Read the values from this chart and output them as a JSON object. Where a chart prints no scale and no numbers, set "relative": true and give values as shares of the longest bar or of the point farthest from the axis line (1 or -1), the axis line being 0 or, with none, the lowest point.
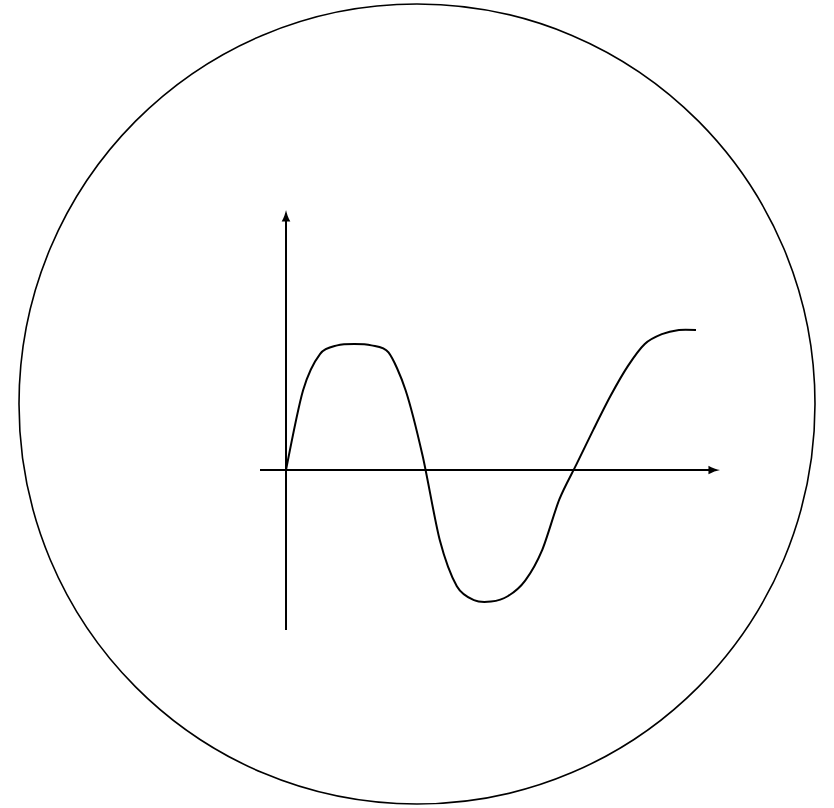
{
  "chart_data": {
    "type": "line",
    "relative": true,
    "categories": [
      null,
      null,
      null,
      null,
      null,
      null,
      null,
      null,
      null,
      null,
      null,
      null,
      null,
      null,
      null,
      null,
      null,
      null,
      null,
      null,
      null,
      null,
      null,
      null,
      null
    ],
    "series": [
      {
        "color": "#000000",
        "values": [
          0,
          0.57,
          0.83,
          0.89,
          0.9,
          0.89,
          0.84,
          0.57,
          0.1,
          -0.5,
          -0.83,
          -0.93,
          -0.94,
          -0.9,
          -0.79,
          -0.57,
          -0.21,
          0.04,
          0.29,
          0.53,
          0.74,
          0.9,
          0.97,
          1,
          1
        ]
      }
    ]
  }
}
